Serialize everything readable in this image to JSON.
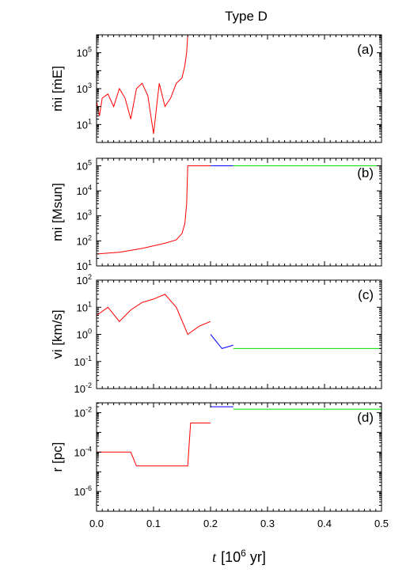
{
  "title": "Type D",
  "xaxis": {
    "label_var": "t",
    "label_unit": "[10",
    "label_exp": "6",
    "label_tail": " yr]",
    "range": [
      0,
      0.5
    ],
    "ticks": [
      "0.0",
      "0.1",
      "0.2",
      "0.3",
      "0.4",
      "0.5"
    ]
  },
  "panels": [
    {
      "id": "a",
      "tag": "(a)",
      "ylabel": "ṁi [ṁE]",
      "scale": "log",
      "ylim_exp": [
        0,
        6
      ],
      "yticks": [
        {
          "base": "10",
          "exp": "1",
          "e": 1
        },
        {
          "base": "10",
          "exp": "3",
          "e": 3
        },
        {
          "base": "10",
          "exp": "5",
          "e": 5
        }
      ]
    },
    {
      "id": "b",
      "tag": "(b)",
      "ylabel": "mi [Msun]",
      "scale": "log",
      "ylim_exp": [
        1,
        5.3
      ],
      "yticks": [
        {
          "base": "10",
          "exp": "1",
          "e": 1
        },
        {
          "base": "10",
          "exp": "2",
          "e": 2
        },
        {
          "base": "10",
          "exp": "3",
          "e": 3
        },
        {
          "base": "10",
          "exp": "4",
          "e": 4
        },
        {
          "base": "10",
          "exp": "5",
          "e": 5
        }
      ]
    },
    {
      "id": "c",
      "tag": "(c)",
      "ylabel": "vi [km/s]",
      "scale": "log",
      "ylim_exp": [
        -2,
        2
      ],
      "yticks": [
        {
          "base": "10",
          "exp": "-2",
          "e": -2
        },
        {
          "base": "10",
          "exp": "-1",
          "e": -1
        },
        {
          "base": "10",
          "exp": "0",
          "e": 0
        },
        {
          "base": "10",
          "exp": "1",
          "e": 1
        },
        {
          "base": "10",
          "exp": "2",
          "e": 2
        }
      ]
    },
    {
      "id": "d",
      "tag": "(d)",
      "ylabel": "r [pc]",
      "scale": "log",
      "ylim_exp": [
        -7,
        -1.5
      ],
      "yticks": [
        {
          "base": "10",
          "exp": "-6",
          "e": -6
        },
        {
          "base": "10",
          "exp": "-4",
          "e": -4
        },
        {
          "base": "10",
          "exp": "-2",
          "e": -2
        }
      ]
    }
  ],
  "chart_data": [
    {
      "type": "line",
      "panel": "a",
      "scale_y": "log",
      "series": [
        {
          "color": "#ff0000",
          "x": [
            0.0,
            0.005,
            0.01,
            0.02,
            0.03,
            0.04,
            0.05,
            0.06,
            0.07,
            0.08,
            0.09,
            0.1,
            0.11,
            0.12,
            0.13,
            0.14,
            0.15,
            0.155,
            0.158,
            0.16
          ],
          "y": [
            200,
            30,
            300,
            500,
            100,
            1000,
            300,
            20,
            1000,
            2000,
            400,
            3,
            2000,
            100,
            300,
            2000,
            4000,
            20000,
            100000,
            1000000
          ]
        }
      ]
    },
    {
      "type": "line",
      "panel": "b",
      "scale_y": "log",
      "series": [
        {
          "color": "#ff0000",
          "x": [
            0.0,
            0.04,
            0.08,
            0.12,
            0.14,
            0.15,
            0.155,
            0.158,
            0.16,
            0.2
          ],
          "y": [
            30,
            35,
            50,
            80,
            110,
            200,
            500,
            3000,
            100000,
            100000
          ]
        },
        {
          "color": "#0000ff",
          "x": [
            0.2,
            0.24
          ],
          "y": [
            100000,
            100000
          ]
        },
        {
          "color": "#00dd00",
          "x": [
            0.24,
            0.5
          ],
          "y": [
            100000,
            100000
          ]
        }
      ]
    },
    {
      "type": "line",
      "panel": "c",
      "scale_y": "log",
      "series": [
        {
          "color": "#ff0000",
          "x": [
            0.0,
            0.02,
            0.04,
            0.06,
            0.08,
            0.1,
            0.12,
            0.14,
            0.16,
            0.18,
            0.2
          ],
          "y": [
            5,
            10,
            3,
            8,
            15,
            20,
            30,
            10,
            1,
            2,
            3
          ]
        },
        {
          "color": "#0000ff",
          "x": [
            0.2,
            0.22,
            0.24
          ],
          "y": [
            1,
            0.3,
            0.4
          ]
        },
        {
          "color": "#00dd00",
          "x": [
            0.24,
            0.3,
            0.4,
            0.5
          ],
          "y": [
            0.3,
            0.3,
            0.3,
            0.3
          ]
        }
      ]
    },
    {
      "type": "line",
      "panel": "d",
      "scale_y": "log",
      "series": [
        {
          "color": "#ff0000",
          "x": [
            0.0,
            0.03,
            0.06,
            0.07,
            0.1,
            0.16,
            0.165,
            0.2
          ],
          "y": [
            0.0001,
            0.0001,
            0.0001,
            2e-05,
            2e-05,
            2e-05,
            0.003,
            0.003
          ]
        },
        {
          "color": "#0000ff",
          "x": [
            0.2,
            0.24
          ],
          "y": [
            0.02,
            0.02
          ]
        },
        {
          "color": "#00dd00",
          "x": [
            0.24,
            0.5
          ],
          "y": [
            0.015,
            0.015
          ]
        }
      ]
    }
  ]
}
